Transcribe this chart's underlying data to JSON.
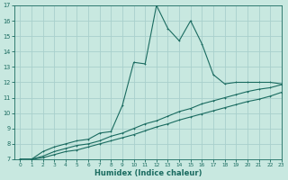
{
  "xlabel": "Humidex (Indice chaleur)",
  "bg_color": "#c8e8e0",
  "grid_color": "#a8d0cc",
  "line_color": "#1a6b60",
  "xlim": [
    -0.5,
    23
  ],
  "ylim": [
    7,
    17
  ],
  "xticks": [
    0,
    1,
    2,
    3,
    4,
    5,
    6,
    7,
    8,
    9,
    10,
    11,
    12,
    13,
    14,
    15,
    16,
    17,
    18,
    19,
    20,
    21,
    22,
    23
  ],
  "yticks": [
    7,
    8,
    9,
    10,
    11,
    12,
    13,
    14,
    15,
    16,
    17
  ],
  "line1_x": [
    0,
    1,
    2,
    3,
    4,
    5,
    6,
    7,
    8,
    9,
    10,
    11,
    12,
    13,
    14,
    15,
    16,
    17,
    18,
    19,
    20,
    21,
    22,
    23
  ],
  "line1_y": [
    7.0,
    7.0,
    7.5,
    7.8,
    8.0,
    8.2,
    8.3,
    8.7,
    8.8,
    10.5,
    13.3,
    13.2,
    17.0,
    15.5,
    14.7,
    16.0,
    14.5,
    12.5,
    11.9,
    12.0,
    12.0,
    12.0,
    12.0,
    11.9
  ],
  "line2_x": [
    0,
    1,
    2,
    3,
    4,
    5,
    6,
    7,
    8,
    9,
    10,
    11,
    12,
    13,
    14,
    15,
    16,
    17,
    18,
    19,
    20,
    21,
    22,
    23
  ],
  "line2_y": [
    7.0,
    7.0,
    7.2,
    7.5,
    7.7,
    7.9,
    8.0,
    8.2,
    8.5,
    8.7,
    9.0,
    9.3,
    9.5,
    9.8,
    10.1,
    10.3,
    10.6,
    10.8,
    11.0,
    11.2,
    11.4,
    11.55,
    11.65,
    11.85
  ],
  "line3_x": [
    0,
    1,
    2,
    3,
    4,
    5,
    6,
    7,
    8,
    9,
    10,
    11,
    12,
    13,
    14,
    15,
    16,
    17,
    18,
    19,
    20,
    21,
    22,
    23
  ],
  "line3_y": [
    7.0,
    7.0,
    7.1,
    7.3,
    7.5,
    7.6,
    7.8,
    8.0,
    8.2,
    8.4,
    8.6,
    8.85,
    9.1,
    9.3,
    9.55,
    9.75,
    9.95,
    10.15,
    10.35,
    10.55,
    10.75,
    10.9,
    11.1,
    11.35
  ]
}
